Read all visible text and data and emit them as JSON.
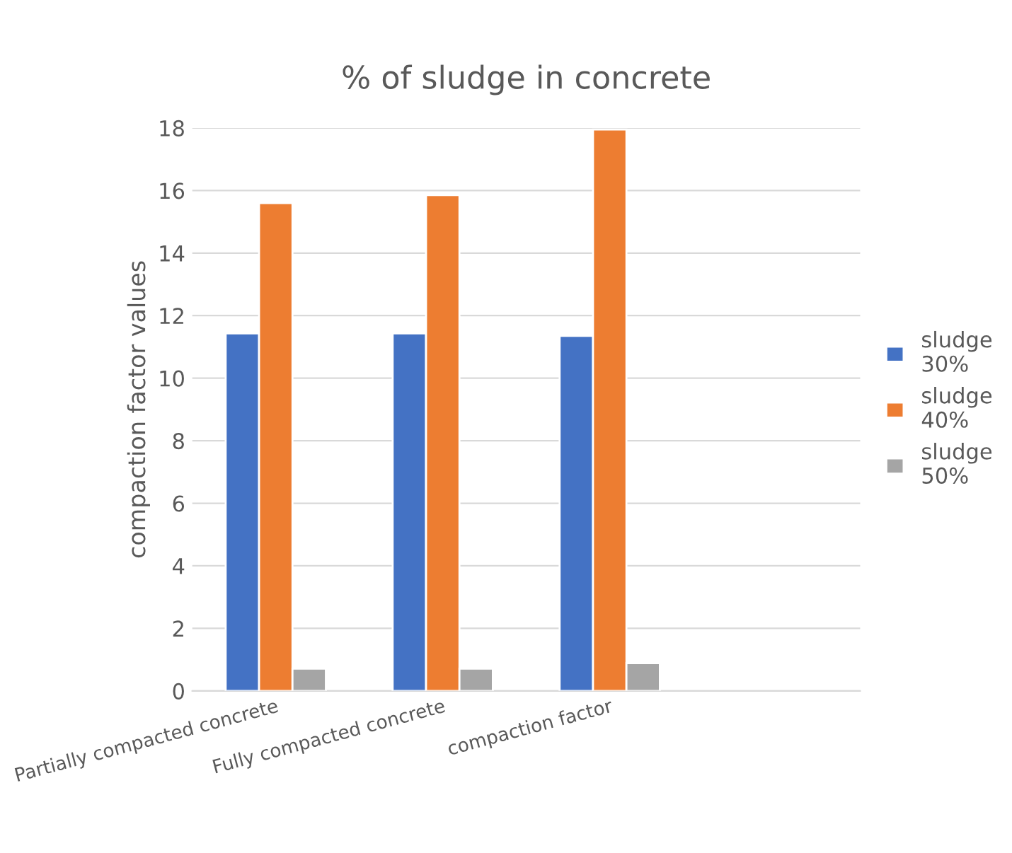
{
  "chart_data": {
    "type": "bar",
    "title": "% of sludge in concrete",
    "ylabel": "compaction factor values",
    "categories": [
      "Partially compacted concrete",
      "Fully compacted concrete",
      "compaction factor",
      null
    ],
    "series": [
      {
        "name": "sludge 30%",
        "color": "#4472c4",
        "values": [
          11.43,
          11.43,
          11.35,
          null
        ]
      },
      {
        "name": "sludge 40%",
        "color": "#ed7d31",
        "values": [
          15.6,
          15.85,
          17.95,
          null
        ]
      },
      {
        "name": "sludge 50%",
        "color": "#a5a5a5",
        "values": [
          0.71,
          0.71,
          0.89,
          null
        ]
      }
    ],
    "ylim": [
      0,
      18
    ],
    "yticks": [
      0,
      2,
      4,
      6,
      8,
      10,
      12,
      14,
      16,
      18
    ],
    "grid": "y",
    "legend": "right"
  }
}
